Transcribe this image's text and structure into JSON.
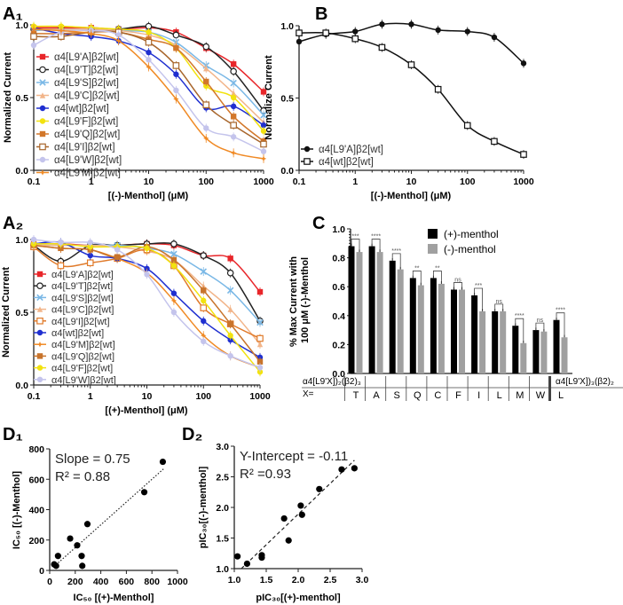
{
  "chart_data": [
    {
      "id": "A1",
      "type": "line",
      "panel_label": "A₁",
      "xlabel": "[(-)-Menthol] (μM)",
      "ylabel": "Normalized Current",
      "xscale": "log",
      "xlim": [
        0.1,
        1000
      ],
      "ylim": [
        0,
        1
      ],
      "xticks": [
        "0.1",
        "1",
        "10",
        "100",
        "1000"
      ],
      "yticks": [
        "0.0",
        "0.5",
        "1.0"
      ],
      "legend": "center-left",
      "x": [
        0.1,
        0.3,
        1,
        3,
        10,
        30,
        100,
        300,
        1000
      ],
      "series": [
        {
          "name": "α4[L9'A]β2[wt]",
          "color": "#e8262a",
          "marker": "square",
          "values": [
            0.98,
            0.98,
            0.98,
            0.97,
            0.98,
            0.95,
            0.84,
            0.73,
            0.54
          ]
        },
        {
          "name": "α4[L9'T]β2[wt]",
          "color": "#222222",
          "marker": "open-circle",
          "values": [
            0.97,
            0.97,
            0.97,
            0.97,
            0.99,
            0.93,
            0.85,
            0.68,
            0.41
          ]
        },
        {
          "name": "α4[L9'S]β2[wt]",
          "color": "#7ab8e6",
          "marker": "x",
          "values": [
            0.96,
            0.97,
            0.97,
            0.96,
            0.95,
            0.88,
            0.72,
            0.6,
            0.38
          ]
        },
        {
          "name": "α4[L9'C]β2[wt]",
          "color": "#f2b58a",
          "marker": "triangle",
          "values": [
            0.97,
            0.97,
            0.97,
            0.96,
            0.93,
            0.86,
            0.7,
            0.53,
            0.33
          ]
        },
        {
          "name": "α4[wt]β2[wt]",
          "color": "#1f2fd0",
          "marker": "circle",
          "values": [
            0.98,
            0.94,
            0.92,
            0.89,
            0.81,
            0.66,
            0.43,
            0.44,
            0.31
          ]
        },
        {
          "name": "α4[L9'F]β2[wt]",
          "color": "#f2e20f",
          "marker": "circle",
          "values": [
            0.99,
            0.99,
            0.98,
            0.97,
            0.95,
            0.84,
            0.58,
            0.5,
            0.27
          ]
        },
        {
          "name": "α4[L9'Q]β2[wt]",
          "color": "#d2772a",
          "marker": "square",
          "values": [
            0.94,
            0.94,
            0.95,
            0.95,
            0.9,
            0.84,
            0.61,
            0.37,
            0.2
          ]
        },
        {
          "name": "α4[L9'I]β2[wt]",
          "color": "#a8662c",
          "marker": "open-square",
          "values": [
            0.92,
            0.92,
            0.95,
            0.95,
            0.88,
            0.72,
            0.45,
            0.31,
            0.18
          ]
        },
        {
          "name": "α4[L9'W]β2[wt]",
          "color": "#c4c4ec",
          "marker": "circle",
          "values": [
            0.86,
            0.95,
            0.96,
            0.93,
            0.76,
            0.55,
            0.29,
            0.23,
            0.13
          ]
        },
        {
          "name": "α4[L9'M]β2[wt]",
          "color": "#f08a25",
          "marker": "star",
          "values": [
            0.97,
            0.96,
            0.94,
            0.89,
            0.71,
            0.49,
            0.22,
            0.12,
            0.08
          ]
        }
      ]
    },
    {
      "id": "B",
      "type": "line",
      "panel_label": "B",
      "xlabel": "[(-)-Menthol] (μM)",
      "ylabel": "Normalize Current",
      "xscale": "log",
      "xlim": [
        0.1,
        1000
      ],
      "ylim": [
        0,
        1
      ],
      "xticks": [
        "0.1",
        "1",
        "10",
        "100",
        "1000"
      ],
      "yticks": [
        "0.0",
        "0.5",
        "1.0"
      ],
      "legend": "bottom-left",
      "x": [
        0.1,
        0.3,
        1,
        3,
        10,
        30,
        100,
        300,
        1000
      ],
      "series": [
        {
          "name": "α4[L9'A]β2[wt]",
          "color": "#111111",
          "marker": "circle",
          "values": [
            0.89,
            0.94,
            0.96,
            1.01,
            1.01,
            0.97,
            0.96,
            0.92,
            0.74
          ]
        },
        {
          "name": "α4[wt]β2[wt]",
          "color": "#111111",
          "marker": "open-square",
          "values": [
            0.95,
            0.95,
            0.91,
            0.85,
            0.73,
            0.56,
            0.31,
            0.2,
            0.11
          ]
        }
      ]
    },
    {
      "id": "A2",
      "type": "line",
      "panel_label": "A₂",
      "xlabel": "[(+)-Menthol] (μM)",
      "ylabel": "Normalized Current",
      "xscale": "log",
      "xlim": [
        0.1,
        1000
      ],
      "ylim": [
        0,
        1
      ],
      "xticks": [
        "0.1",
        "1",
        "10",
        "100",
        "1000"
      ],
      "yticks": [
        "0.0",
        "0.5",
        "1.0"
      ],
      "legend": "center-left",
      "x": [
        0.1,
        0.3,
        1,
        3,
        10,
        30,
        100,
        300,
        1000
      ],
      "series": [
        {
          "name": "α4[L9'A]β2[wt]",
          "color": "#e8262a",
          "marker": "square",
          "values": [
            0.97,
            0.97,
            0.96,
            0.96,
            0.97,
            0.96,
            0.89,
            0.87,
            0.64
          ]
        },
        {
          "name": "α4[L9'T]β2[wt]",
          "color": "#222222",
          "marker": "open-circle",
          "values": [
            0.96,
            0.85,
            0.96,
            0.96,
            0.97,
            0.97,
            0.89,
            0.77,
            0.44
          ]
        },
        {
          "name": "α4[L9'S]β2[wt]",
          "color": "#7ab8e6",
          "marker": "x",
          "values": [
            0.96,
            0.96,
            0.96,
            0.96,
            0.94,
            0.9,
            0.78,
            0.65,
            0.43
          ]
        },
        {
          "name": "α4[L9'C]β2[wt]",
          "color": "#f2b58a",
          "marker": "triangle",
          "values": [
            0.96,
            0.96,
            0.96,
            0.95,
            0.92,
            0.86,
            0.68,
            0.52,
            0.28
          ]
        },
        {
          "name": "α4[L9'I]β2[wt]",
          "color": "#e07a2a",
          "marker": "open-square",
          "values": [
            0.95,
            0.82,
            0.84,
            0.87,
            0.93,
            0.82,
            0.53,
            0.42,
            0.32
          ]
        },
        {
          "name": "α4[wt]β2[wt]",
          "color": "#1f2fd0",
          "marker": "circle",
          "values": [
            0.97,
            0.98,
            0.89,
            0.87,
            0.8,
            0.63,
            0.44,
            0.31,
            0.19
          ]
        },
        {
          "name": "α4[L9'M]β2[wt]",
          "color": "#f08a25",
          "marker": "star",
          "values": [
            0.96,
            0.94,
            0.93,
            0.87,
            0.77,
            0.58,
            0.34,
            0.2,
            0.12
          ]
        },
        {
          "name": "α4[L9'Q]β2[wt]",
          "color": "#c8742c",
          "marker": "square",
          "values": [
            0.96,
            0.94,
            0.93,
            0.88,
            0.95,
            0.86,
            0.65,
            0.42,
            0.16
          ]
        },
        {
          "name": "α4[L9'F]β2[wt]",
          "color": "#f2e20f",
          "marker": "circle",
          "values": [
            0.97,
            0.97,
            0.95,
            0.95,
            0.94,
            0.82,
            0.58,
            0.34,
            0.09
          ]
        },
        {
          "name": "α4[L9'W]β2[wt]",
          "color": "#c4c4ec",
          "marker": "circle",
          "values": [
            1.0,
            0.98,
            0.98,
            0.93,
            0.76,
            0.5,
            0.3,
            0.2,
            0.12
          ]
        }
      ]
    },
    {
      "id": "C",
      "type": "bar",
      "panel_label": "C",
      "ylabel": "% Max Current with 100 μM (-)-Menthol",
      "ylim": [
        0,
        1
      ],
      "yticks": [
        "0.0",
        "0.2",
        "0.4",
        "0.6",
        "0.8",
        "1.0"
      ],
      "legend": "top-right",
      "row_label_1": "α4[L9'X])₂(β2)₃",
      "row_label_2": "α4[L9'X])₃(β2)₂",
      "x_row_label": "X=",
      "categories": [
        "T",
        "A",
        "S",
        "Q",
        "C",
        "F",
        "I",
        "L",
        "M",
        "W",
        "L"
      ],
      "series": [
        {
          "name": "(+)-menthol",
          "color": "#000000",
          "values": [
            0.88,
            0.88,
            0.78,
            0.66,
            0.66,
            0.58,
            0.54,
            0.43,
            0.33,
            0.3,
            0.37
          ]
        },
        {
          "name": "(-)-menthol",
          "color": "#a0a0a0",
          "values": [
            0.84,
            0.84,
            0.72,
            0.61,
            0.62,
            0.58,
            0.43,
            0.43,
            0.21,
            0.29,
            0.25
          ]
        }
      ],
      "significance": [
        "***",
        "****",
        "****",
        "**",
        "**",
        "ns",
        "***",
        "ns",
        "****",
        "ns",
        "****"
      ]
    },
    {
      "id": "D1",
      "type": "scatter",
      "panel_label": "D₁",
      "xlabel": "IC₅₀ [(+)-Menthol]",
      "ylabel": "IC₅₀ [(-)-Menthol]",
      "xlim": [
        0,
        1000
      ],
      "ylim": [
        0,
        800
      ],
      "xticks": [
        "0",
        "200",
        "400",
        "600",
        "800",
        "1000"
      ],
      "yticks": [
        "0",
        "200",
        "400",
        "600",
        "800"
      ],
      "fit": "dotted",
      "annotation_1": "Slope =  0.75",
      "annotation_2": "R² =  0.88",
      "slope": 0.75,
      "points": [
        [
          35,
          40
        ],
        [
          50,
          30
        ],
        [
          65,
          95
        ],
        [
          160,
          210
        ],
        [
          215,
          165
        ],
        [
          250,
          95
        ],
        [
          255,
          30
        ],
        [
          295,
          305
        ],
        [
          740,
          515
        ],
        [
          885,
          715
        ]
      ]
    },
    {
      "id": "D2",
      "type": "scatter",
      "panel_label": "D₂",
      "xlabel": "pIC₃₀[(+)-menthol]",
      "ylabel": "pIC₃₀[(-)-menthol]",
      "xlim": [
        1,
        3
      ],
      "ylim": [
        1,
        3
      ],
      "xticks": [
        "1.0",
        "1.5",
        "2.0",
        "2.5",
        "3.0"
      ],
      "yticks": [
        "1.0",
        "1.5",
        "2.0",
        "2.5",
        "3.0"
      ],
      "fit": "dashed",
      "annotation_1": "Y-Intercept = -0.11",
      "annotation_2": "R² =0.93",
      "intercept": -0.11,
      "points": [
        [
          1.05,
          1.2
        ],
        [
          1.2,
          1.08
        ],
        [
          1.43,
          1.22
        ],
        [
          1.43,
          1.18
        ],
        [
          1.78,
          1.82
        ],
        [
          1.85,
          1.46
        ],
        [
          2.04,
          2.03
        ],
        [
          2.06,
          1.88
        ],
        [
          2.33,
          2.3
        ],
        [
          2.68,
          2.62
        ],
        [
          2.88,
          2.64
        ]
      ]
    }
  ]
}
